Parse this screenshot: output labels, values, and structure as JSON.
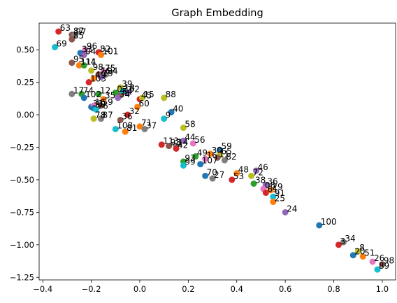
{
  "chart_data": {
    "type": "scatter",
    "title": "Graph Embedding",
    "xlabel": "",
    "ylabel": "",
    "xlim": [
      -0.415,
      1.055
    ],
    "ylim": [
      -1.27,
      0.705
    ],
    "xticks": [
      -0.4,
      -0.2,
      0.0,
      0.2,
      0.4,
      0.6,
      0.8,
      1.0
    ],
    "xtick_labels": [
      "−0.4",
      "−0.2",
      "0.0",
      "0.2",
      "0.4",
      "0.6",
      "0.8",
      "1.0"
    ],
    "yticks": [
      -1.25,
      -1.0,
      -0.75,
      -0.5,
      -0.25,
      0.0,
      0.25,
      0.5
    ],
    "ytick_labels": [
      "−1.25",
      "−1.00",
      "−0.75",
      "−0.50",
      "−0.25",
      "0.00",
      "0.25",
      "0.50"
    ],
    "grid": false,
    "palette": [
      "#1f77b4",
      "#ff7f0e",
      "#2ca02c",
      "#d62728",
      "#9467bd",
      "#8c564b",
      "#e377c2",
      "#7f7f7f",
      "#bcbd22",
      "#17becf"
    ],
    "points": [
      {
        "label": "63",
        "x": -0.335,
        "y": 0.64,
        "color": "#d62728"
      },
      {
        "label": "87",
        "x": -0.28,
        "y": 0.615,
        "color": "#8c564b"
      },
      {
        "label": "97",
        "x": -0.27,
        "y": 0.61,
        "color": "#7f7f7f"
      },
      {
        "label": "85",
        "x": -0.28,
        "y": 0.58,
        "color": "#8c564b"
      },
      {
        "label": "69",
        "x": -0.35,
        "y": 0.52,
        "color": "#17becf"
      },
      {
        "label": "96",
        "x": -0.225,
        "y": 0.5,
        "color": "#e377c2"
      },
      {
        "label": "33",
        "x": -0.245,
        "y": 0.475,
        "color": "#1f77b4"
      },
      {
        "label": "04",
        "x": -0.23,
        "y": 0.46,
        "color": "#9467bd"
      },
      {
        "label": "82",
        "x": -0.17,
        "y": 0.48,
        "color": "#d62728"
      },
      {
        "label": "101",
        "x": -0.16,
        "y": 0.46,
        "color": "#ff7f0e"
      },
      {
        "label": "95",
        "x": -0.28,
        "y": 0.4,
        "color": "#8c564b"
      },
      {
        "label": "111",
        "x": -0.25,
        "y": 0.38,
        "color": "#ff7f0e"
      },
      {
        "label": "14",
        "x": -0.23,
        "y": 0.38,
        "color": "#2ca02c"
      },
      {
        "label": "98",
        "x": -0.2,
        "y": 0.34,
        "color": "#bcbd22"
      },
      {
        "label": "75",
        "x": -0.15,
        "y": 0.33,
        "color": "#e377c2"
      },
      {
        "label": "76",
        "x": -0.17,
        "y": 0.31,
        "color": "#8c564b"
      },
      {
        "label": "94",
        "x": -0.14,
        "y": 0.31,
        "color": "#7f7f7f"
      },
      {
        "label": "19",
        "x": -0.16,
        "y": 0.29,
        "color": "#9467bd"
      },
      {
        "label": "49",
        "x": -0.19,
        "y": 0.28,
        "color": "#ff7f0e"
      },
      {
        "label": "103",
        "x": -0.21,
        "y": 0.25,
        "color": "#d62728"
      },
      {
        "label": "39",
        "x": -0.08,
        "y": 0.21,
        "color": "#bcbd22"
      },
      {
        "label": "17",
        "x": -0.28,
        "y": 0.16,
        "color": "#7f7f7f"
      },
      {
        "label": "74",
        "x": -0.24,
        "y": 0.16,
        "color": "#2ca02c"
      },
      {
        "label": "02",
        "x": -0.1,
        "y": 0.17,
        "color": "#2ca02c"
      },
      {
        "label": "62",
        "x": -0.05,
        "y": 0.17,
        "color": "#9467bd"
      },
      {
        "label": "54",
        "x": -0.08,
        "y": 0.15,
        "color": "#8c564b"
      },
      {
        "label": "18",
        "x": -0.07,
        "y": 0.18,
        "color": "#17becf"
      },
      {
        "label": "12",
        "x": -0.17,
        "y": 0.16,
        "color": "#2ca02c"
      },
      {
        "label": "102",
        "x": -0.23,
        "y": 0.13,
        "color": "#1f77b4"
      },
      {
        "label": "35",
        "x": -0.15,
        "y": 0.12,
        "color": "#ff7f0e"
      },
      {
        "label": "34",
        "x": -0.09,
        "y": 0.13,
        "color": "#9467bd"
      },
      {
        "label": "45",
        "x": 0.0,
        "y": 0.12,
        "color": "#d62728"
      },
      {
        "label": "15",
        "x": 0.01,
        "y": 0.13,
        "color": "#bcbd22"
      },
      {
        "label": "88",
        "x": 0.1,
        "y": 0.13,
        "color": "#bcbd22"
      },
      {
        "label": "31",
        "x": -0.2,
        "y": 0.06,
        "color": "#1f77b4"
      },
      {
        "label": "16",
        "x": -0.19,
        "y": 0.07,
        "color": "#e377c2"
      },
      {
        "label": "59",
        "x": -0.16,
        "y": 0.07,
        "color": "#8c564b"
      },
      {
        "label": "60",
        "x": -0.01,
        "y": 0.06,
        "color": "#ff7f0e"
      },
      {
        "label": "50",
        "x": -0.19,
        "y": 0.05,
        "color": "#1f77b4"
      },
      {
        "label": "76",
        "x": -0.18,
        "y": 0.04,
        "color": "#17becf"
      },
      {
        "label": "40",
        "x": 0.13,
        "y": 0.02,
        "color": "#1f77b4"
      },
      {
        "label": "32",
        "x": -0.05,
        "y": 0.0,
        "color": "#d62728"
      },
      {
        "label": "9",
        "x": 0.1,
        "y": -0.03,
        "color": "#17becf"
      },
      {
        "label": "78",
        "x": -0.19,
        "y": -0.03,
        "color": "#bcbd22"
      },
      {
        "label": "87",
        "x": -0.16,
        "y": -0.03,
        "color": "#7f7f7f"
      },
      {
        "label": "36",
        "x": -0.08,
        "y": -0.04,
        "color": "#8c564b"
      },
      {
        "label": "108",
        "x": -0.1,
        "y": -0.11,
        "color": "#17becf"
      },
      {
        "label": "71",
        "x": 0.0,
        "y": -0.09,
        "color": "#ff7f0e"
      },
      {
        "label": "81",
        "x": -0.06,
        "y": -0.13,
        "color": "#ff7f0e"
      },
      {
        "label": "37",
        "x": 0.02,
        "y": -0.11,
        "color": "#7f7f7f"
      },
      {
        "label": "58",
        "x": 0.18,
        "y": -0.1,
        "color": "#bcbd22"
      },
      {
        "label": "44",
        "x": 0.18,
        "y": -0.2,
        "color": "#9467bd"
      },
      {
        "label": "56",
        "x": 0.22,
        "y": -0.22,
        "color": "#e377c2"
      },
      {
        "label": "113",
        "x": 0.09,
        "y": -0.23,
        "color": "#d62728"
      },
      {
        "label": "93",
        "x": 0.12,
        "y": -0.24,
        "color": "#8c564b"
      },
      {
        "label": "14",
        "x": 0.15,
        "y": -0.24,
        "color": "#7f7f7f"
      },
      {
        "label": "42",
        "x": 0.15,
        "y": -0.26,
        "color": "#d62728"
      },
      {
        "label": "59",
        "x": 0.33,
        "y": -0.27,
        "color": "#1f77b4"
      },
      {
        "label": "30",
        "x": 0.29,
        "y": -0.3,
        "color": "#ff7f0e"
      },
      {
        "label": "49",
        "x": 0.23,
        "y": -0.32,
        "color": "#2ca02c"
      },
      {
        "label": "65",
        "x": 0.33,
        "y": -0.31,
        "color": "#bcbd22"
      },
      {
        "label": "11",
        "x": 0.32,
        "y": -0.33,
        "color": "#8c564b"
      },
      {
        "label": "16",
        "x": 0.27,
        "y": -0.34,
        "color": "#e377c2"
      },
      {
        "label": "93",
        "x": 0.18,
        "y": -0.36,
        "color": "#2ca02c"
      },
      {
        "label": "107",
        "x": 0.25,
        "y": -0.38,
        "color": "#1f77b4"
      },
      {
        "label": "99",
        "x": 0.18,
        "y": -0.39,
        "color": "#17becf"
      },
      {
        "label": "82",
        "x": 0.35,
        "y": -0.35,
        "color": "#7f7f7f"
      },
      {
        "label": "46",
        "x": 0.48,
        "y": -0.43,
        "color": "#9467bd"
      },
      {
        "label": "70",
        "x": 0.27,
        "y": -0.47,
        "color": "#1f77b4"
      },
      {
        "label": "27",
        "x": 0.3,
        "y": -0.49,
        "color": "#7f7f7f"
      },
      {
        "label": "48",
        "x": 0.4,
        "y": -0.45,
        "color": "#ff7f0e"
      },
      {
        "label": "53",
        "x": 0.38,
        "y": -0.5,
        "color": "#d62728"
      },
      {
        "label": "72",
        "x": 0.46,
        "y": -0.47,
        "color": "#bcbd22"
      },
      {
        "label": "38",
        "x": 0.47,
        "y": -0.53,
        "color": "#2ca02c"
      },
      {
        "label": "36",
        "x": 0.52,
        "y": -0.54,
        "color": "#9467bd"
      },
      {
        "label": "06",
        "x": 0.51,
        "y": -0.57,
        "color": "#e377c2"
      },
      {
        "label": "61",
        "x": 0.52,
        "y": -0.6,
        "color": "#d62728"
      },
      {
        "label": "29",
        "x": 0.54,
        "y": -0.58,
        "color": "#ff7f0e"
      },
      {
        "label": "91",
        "x": 0.55,
        "y": -0.63,
        "color": "#17becf"
      },
      {
        "label": "25",
        "x": 0.55,
        "y": -0.67,
        "color": "#ff7f0e"
      },
      {
        "label": "24",
        "x": 0.6,
        "y": -0.75,
        "color": "#9467bd"
      },
      {
        "label": "100",
        "x": 0.74,
        "y": -0.85,
        "color": "#1f77b4"
      },
      {
        "label": "34",
        "x": 0.84,
        "y": -0.98,
        "color": "#7f7f7f"
      },
      {
        "label": "3",
        "x": 0.82,
        "y": -1.0,
        "color": "#d62728"
      },
      {
        "label": "8",
        "x": 0.9,
        "y": -1.05,
        "color": "#bcbd22"
      },
      {
        "label": "20",
        "x": 0.88,
        "y": -1.08,
        "color": "#1f77b4"
      },
      {
        "label": "51",
        "x": 0.92,
        "y": -1.09,
        "color": "#ff7f0e"
      },
      {
        "label": "26",
        "x": 0.96,
        "y": -1.13,
        "color": "#e377c2"
      },
      {
        "label": "98",
        "x": 1.0,
        "y": -1.15,
        "color": "#8c564b"
      },
      {
        "label": "89",
        "x": 0.98,
        "y": -1.19,
        "color": "#17becf"
      }
    ]
  }
}
